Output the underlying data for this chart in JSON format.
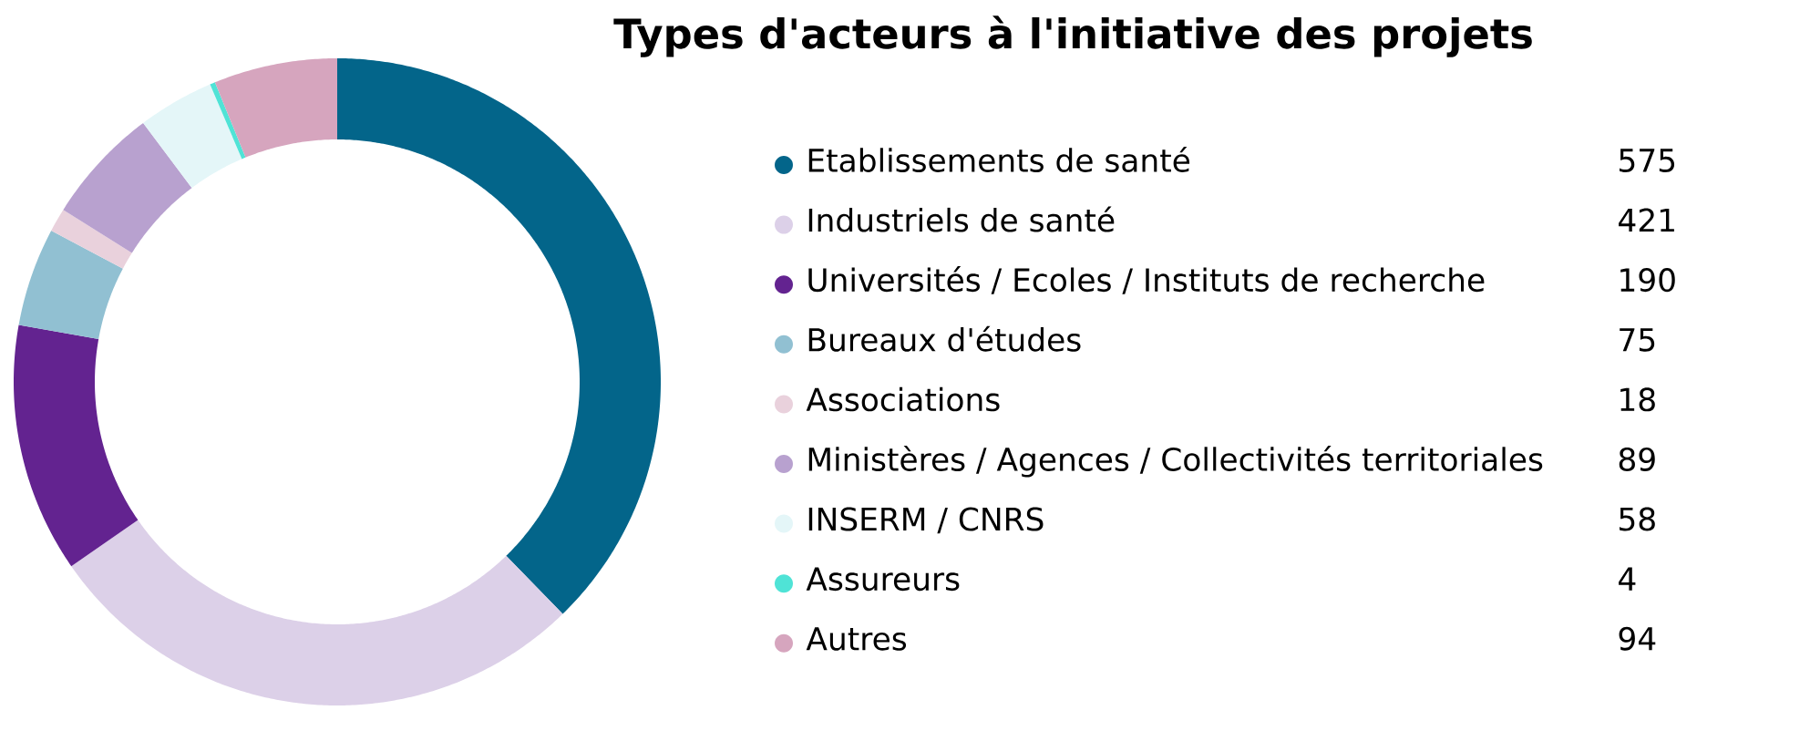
{
  "chart_data": {
    "type": "donut",
    "title": "Types d'acteurs à l'initiative des projets",
    "categories": [
      "Etablissements de santé",
      "Industriels de santé",
      "Universités / Ecoles / Instituts de recherche",
      "Bureaux d'études",
      "Associations",
      "Ministères / Agences / Collectivités territoriales",
      "INSERM / CNRS",
      "Assureurs",
      "Autres"
    ],
    "values": [
      575,
      421,
      190,
      75,
      18,
      89,
      58,
      4,
      94
    ],
    "colors": [
      "#03658a",
      "#dcd0e8",
      "#632390",
      "#91c0d2",
      "#e9d1dc",
      "#b8a1cf",
      "#e4f6f8",
      "#4fe3d6",
      "#d6a5be"
    ],
    "legend": "right",
    "data_labels": true
  }
}
